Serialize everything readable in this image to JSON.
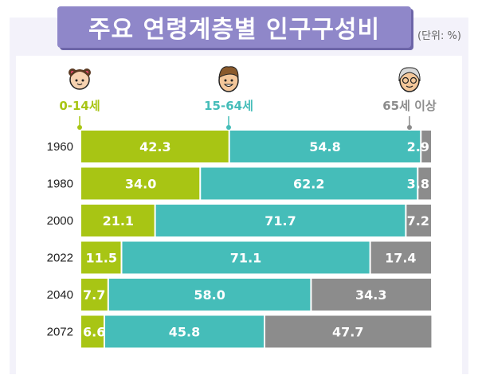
{
  "header": {
    "title": "주요 연령계층별 인구구성비",
    "unit": "(단위: %)"
  },
  "chart_data": {
    "type": "bar",
    "orientation": "horizontal",
    "stacked": true,
    "title": "주요 연령계층별 인구구성비",
    "unit": "(단위: %)",
    "categories": [
      "1960",
      "1980",
      "2000",
      "2022",
      "2040",
      "2072"
    ],
    "series": [
      {
        "name": "0-14세",
        "color": "#a8c514",
        "icon": "child-icon",
        "values": [
          42.3,
          34.0,
          21.1,
          11.5,
          7.7,
          6.6
        ],
        "labels": [
          "42.3",
          "34.0",
          "21.1",
          "11.5",
          "7.7",
          "6.6"
        ]
      },
      {
        "name": "15-64세",
        "color": "#45bdb9",
        "icon": "adult-icon",
        "values": [
          54.8,
          62.2,
          71.7,
          71.1,
          58.0,
          45.8
        ],
        "labels": [
          "54.8",
          "62.2",
          "71.7",
          "71.1",
          "58.0",
          "45.8"
        ]
      },
      {
        "name": "65세 이상",
        "color": "#8c8c8c",
        "icon": "elderly-icon",
        "values": [
          2.9,
          3.8,
          7.2,
          17.4,
          34.3,
          47.7
        ],
        "labels": [
          "2.9",
          "3.8",
          "7.2",
          "17.4",
          "34.3",
          "47.7"
        ]
      }
    ],
    "xlim": [
      0,
      100
    ],
    "legend_position": "top"
  }
}
